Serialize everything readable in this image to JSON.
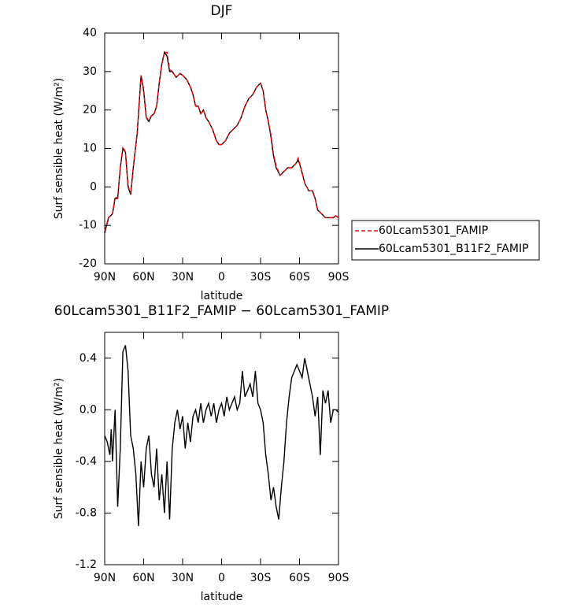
{
  "chart_data": [
    {
      "type": "line",
      "title": "DJF",
      "x_label": "latitude",
      "y_label": "Surf sensible heat (W/m²)",
      "x": [
        90,
        87,
        84,
        82,
        80,
        78,
        76,
        74,
        72,
        70,
        68,
        65,
        62,
        60,
        58,
        56,
        54,
        52,
        50,
        48,
        46,
        44,
        42,
        40,
        38,
        35,
        32,
        30,
        27,
        24,
        22,
        20,
        18,
        16,
        14,
        12,
        10,
        7,
        4,
        2,
        0,
        -3,
        -6,
        -9,
        -12,
        -15,
        -18,
        -21,
        -24,
        -27,
        -30,
        -32,
        -34,
        -36,
        -38,
        -40,
        -42,
        -45,
        -48,
        -51,
        -54,
        -57,
        -59,
        -61,
        -64,
        -67,
        -70,
        -72,
        -74,
        -77,
        -80,
        -83,
        -86,
        -88,
        -90
      ],
      "series": [
        {
          "name": "60Lcam5301_FAMIP",
          "color": "#ff0000",
          "line_style": "dashed",
          "values": [
            -11.5,
            -8,
            -7,
            -2.5,
            -3,
            5,
            10.5,
            9,
            0.5,
            -2,
            5,
            14,
            29,
            25.5,
            18,
            17.5,
            18.5,
            19,
            21,
            27,
            32,
            35,
            35,
            30.5,
            30,
            28.5,
            29.5,
            29,
            28,
            26,
            24,
            21,
            21,
            19,
            20,
            18,
            17,
            15,
            12,
            11,
            11,
            12,
            14,
            15,
            16,
            18,
            21,
            23,
            24,
            26,
            27,
            25,
            20,
            17,
            13.5,
            8.5,
            5.5,
            3,
            4,
            5,
            5,
            6,
            7.5,
            5,
            1,
            -1,
            -1,
            -3,
            -6,
            -7,
            -8,
            -8,
            -8,
            -7.5,
            -8
          ]
        },
        {
          "name": "60Lcam5301_B11F2_FAMIP",
          "color": "#000000",
          "line_style": "solid",
          "values": [
            -12,
            -8,
            -7,
            -3,
            -3,
            5,
            10,
            9,
            0,
            -2,
            5,
            14,
            29,
            25,
            18,
            17,
            18.5,
            19,
            21,
            27,
            32,
            35,
            34,
            30,
            30,
            28.5,
            29.5,
            29,
            28,
            26,
            24,
            21,
            21,
            19,
            20,
            18,
            17,
            15,
            12,
            11,
            11,
            12,
            14,
            15,
            16,
            18,
            21,
            23,
            24,
            26,
            27,
            25,
            20,
            17,
            13,
            8,
            5,
            3,
            4,
            5,
            5,
            6,
            7,
            5,
            1,
            -1,
            -1,
            -3,
            -6,
            -7,
            -8,
            -8,
            -8,
            -7.5,
            -8
          ]
        }
      ],
      "xlim": [
        90,
        -90
      ],
      "xticks": [
        {
          "value": 90,
          "label": "90N"
        },
        {
          "value": 60,
          "label": "60N"
        },
        {
          "value": 30,
          "label": "30N"
        },
        0,
        {
          "value": -30,
          "label": "30S"
        },
        {
          "value": -60,
          "label": "60S"
        },
        {
          "value": -90,
          "label": "90S"
        }
      ],
      "ylim": [
        -20,
        40
      ],
      "yticks": [
        -20,
        -10,
        0,
        10,
        20,
        30,
        40
      ],
      "legend": "outside-right"
    },
    {
      "type": "line",
      "title": "60Lcam5301_B11F2_FAMIP − 60Lcam5301_FAMIP",
      "x_label": "latitude",
      "y_label": "Surf sensible heat (W/m²)",
      "x": [
        90,
        88,
        86,
        85,
        84,
        82,
        80,
        78,
        76,
        74,
        72,
        70,
        68,
        66,
        64,
        62,
        60,
        58,
        56,
        54,
        52,
        50,
        48,
        46,
        44,
        42,
        40,
        38,
        36,
        34,
        32,
        30,
        28,
        26,
        24,
        22,
        20,
        18,
        16,
        14,
        12,
        10,
        8,
        6,
        4,
        2,
        0,
        -2,
        -4,
        -6,
        -8,
        -10,
        -12,
        -14,
        -16,
        -18,
        -20,
        -22,
        -24,
        -26,
        -28,
        -30,
        -32,
        -34,
        -36,
        -38,
        -40,
        -42,
        -44,
        -46,
        -48,
        -50,
        -52,
        -54,
        -56,
        -58,
        -60,
        -62,
        -64,
        -66,
        -68,
        -70,
        -72,
        -74,
        -76,
        -78,
        -80,
        -82,
        -84,
        -86,
        -88,
        -90
      ],
      "values": [
        -0.2,
        -0.25,
        -0.35,
        -0.15,
        -0.4,
        0.0,
        -0.75,
        -0.3,
        0.45,
        0.5,
        0.3,
        -0.2,
        -0.3,
        -0.5,
        -0.9,
        -0.4,
        -0.6,
        -0.3,
        -0.2,
        -0.5,
        -0.6,
        -0.3,
        -0.7,
        -0.5,
        -0.8,
        -0.4,
        -0.85,
        -0.3,
        -0.1,
        0.0,
        -0.15,
        -0.05,
        -0.3,
        -0.1,
        -0.25,
        -0.05,
        0.0,
        -0.1,
        0.05,
        -0.1,
        0.0,
        0.05,
        -0.05,
        0.05,
        -0.1,
        0.0,
        0.05,
        -0.05,
        0.1,
        0.0,
        0.05,
        0.1,
        0.0,
        0.05,
        0.3,
        0.1,
        0.15,
        0.2,
        0.1,
        0.3,
        0.05,
        0.0,
        -0.1,
        -0.35,
        -0.5,
        -0.7,
        -0.6,
        -0.75,
        -0.85,
        -0.6,
        -0.4,
        -0.1,
        0.1,
        0.25,
        0.3,
        0.35,
        0.3,
        0.25,
        0.4,
        0.3,
        0.2,
        0.1,
        -0.05,
        0.1,
        -0.35,
        0.15,
        0.05,
        0.15,
        -0.1,
        0.0,
        0.0,
        -0.02
      ],
      "color": "#000000",
      "xlim": [
        90,
        -90
      ],
      "xticks": [
        {
          "value": 90,
          "label": "90N"
        },
        {
          "value": 60,
          "label": "60N"
        },
        {
          "value": 30,
          "label": "30N"
        },
        0,
        {
          "value": -30,
          "label": "30S"
        },
        {
          "value": -60,
          "label": "60S"
        },
        {
          "value": -90,
          "label": "90S"
        }
      ],
      "ylim": [
        -1.2,
        0.6
      ],
      "yticks": [
        -1.2,
        -0.8,
        -0.4,
        {
          "value": 0,
          "label": "0.0"
        },
        0.4
      ]
    }
  ]
}
